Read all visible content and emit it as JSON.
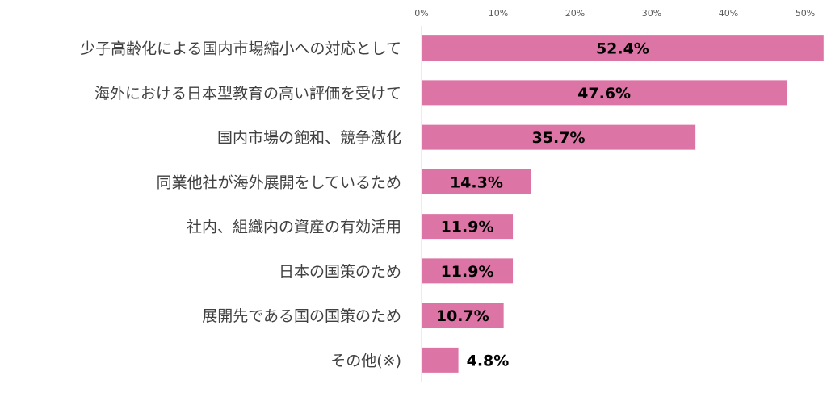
{
  "chart_data": {
    "type": "bar",
    "orientation": "horizontal",
    "title": "",
    "xlabel": "",
    "ylabel": "",
    "xlim": [
      0,
      50
    ],
    "x_ticks": [
      "0%",
      "10%",
      "20%",
      "30%",
      "40%",
      "50%"
    ],
    "x_tick_values": [
      0,
      10,
      20,
      30,
      40,
      50
    ],
    "grid": false,
    "legend": "none",
    "categories": [
      "少子高齢化による国内市場縮小への対応として",
      "海外における日本型教育の高い評価を受けて",
      "国内市場の飽和、競争激化",
      "同業他社が海外展開をしているため",
      "社内、組織内の資産の有効活用",
      "日本の国策のため",
      "展開先である国の国策のため",
      "その他(※)"
    ],
    "values": [
      52.4,
      47.6,
      35.7,
      14.3,
      11.9,
      11.9,
      10.7,
      4.8
    ],
    "data_labels": [
      "52.4%",
      "47.6%",
      "35.7%",
      "14.3%",
      "11.9%",
      "11.9%",
      "10.7%",
      "4.8%"
    ],
    "bar_color": "#dc75a5",
    "axis_color": "#d9d9d9"
  }
}
